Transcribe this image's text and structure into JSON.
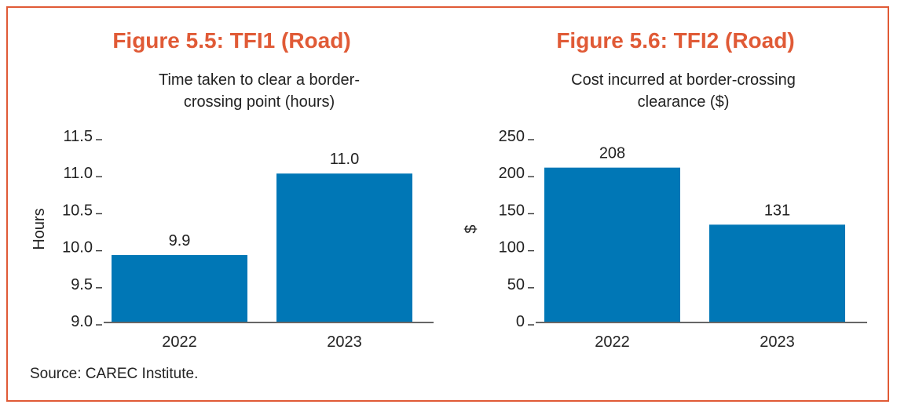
{
  "source": "Source: CAREC Institute.",
  "chart_data": [
    {
      "type": "bar",
      "title": "Figure 5.5: TFI1 (Road)",
      "subtitle": [
        "Time taken to clear a border-",
        "crossing point (hours)"
      ],
      "ylabel": "Hours",
      "xlabel": "",
      "categories": [
        "2022",
        "2023"
      ],
      "values": [
        9.9,
        11.0
      ],
      "value_labels": [
        "9.9",
        "11.0"
      ],
      "ylim": [
        9.0,
        11.5
      ],
      "yticks": [
        9.0,
        9.5,
        10.0,
        10.5,
        11.0,
        11.5
      ],
      "ytick_labels": [
        "9.0",
        "9.5",
        "10.0",
        "10.5",
        "11.0",
        "11.5"
      ],
      "bar_color": "#0077b6",
      "grid": false
    },
    {
      "type": "bar",
      "title": "Figure 5.6: TFI2 (Road)",
      "subtitle": [
        "Cost incurred at border-crossing",
        "clearance ($)"
      ],
      "ylabel": "$",
      "xlabel": "",
      "categories": [
        "2022",
        "2023"
      ],
      "values": [
        208,
        131
      ],
      "value_labels": [
        "208",
        "131"
      ],
      "ylim": [
        0,
        250
      ],
      "yticks": [
        0,
        50,
        100,
        150,
        200,
        250
      ],
      "ytick_labels": [
        "0",
        "50",
        "100",
        "150",
        "200",
        "250"
      ],
      "bar_color": "#0077b6",
      "grid": false
    }
  ]
}
